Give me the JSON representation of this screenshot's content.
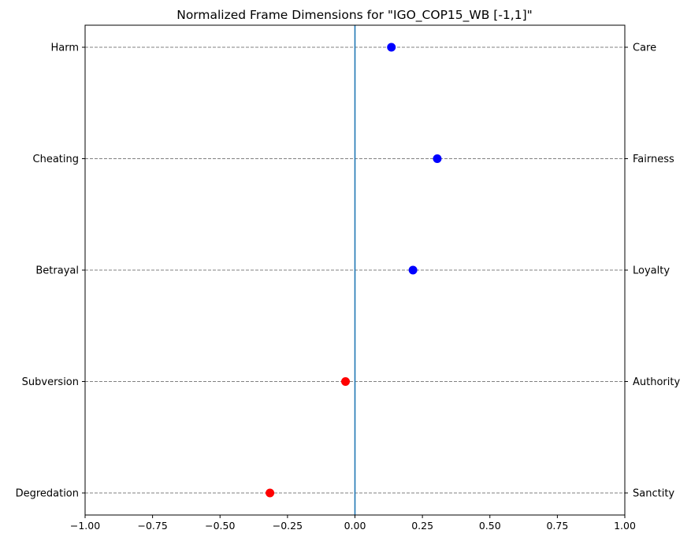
{
  "chart_data": {
    "type": "scatter",
    "title": "Normalized Frame Dimensions for \"IGO_COP15_WB [-1,1]\"",
    "xlabel": "",
    "ylabel": "",
    "xlim": [
      -1.0,
      1.0
    ],
    "x_ticks": [
      -1.0,
      -0.75,
      -0.5,
      -0.25,
      0.0,
      0.25,
      0.5,
      0.75,
      1.0
    ],
    "x_tick_labels": [
      "−1.00",
      "−0.75",
      "−0.50",
      "−0.25",
      "0.00",
      "0.25",
      "0.50",
      "0.75",
      "1.00"
    ],
    "left_labels": [
      "Harm",
      "Cheating",
      "Betrayal",
      "Subversion",
      "Degredation"
    ],
    "right_labels": [
      "Care",
      "Fairness",
      "Loyalty",
      "Authority",
      "Sanctity"
    ],
    "values": [
      0.135,
      0.305,
      0.215,
      -0.035,
      -0.315
    ],
    "positive_color": "#0000ff",
    "negative_color": "#ff0000",
    "zero_line_color": "#1f77b4",
    "grid": "horizontal dashed",
    "gridline_color": "#808080"
  }
}
